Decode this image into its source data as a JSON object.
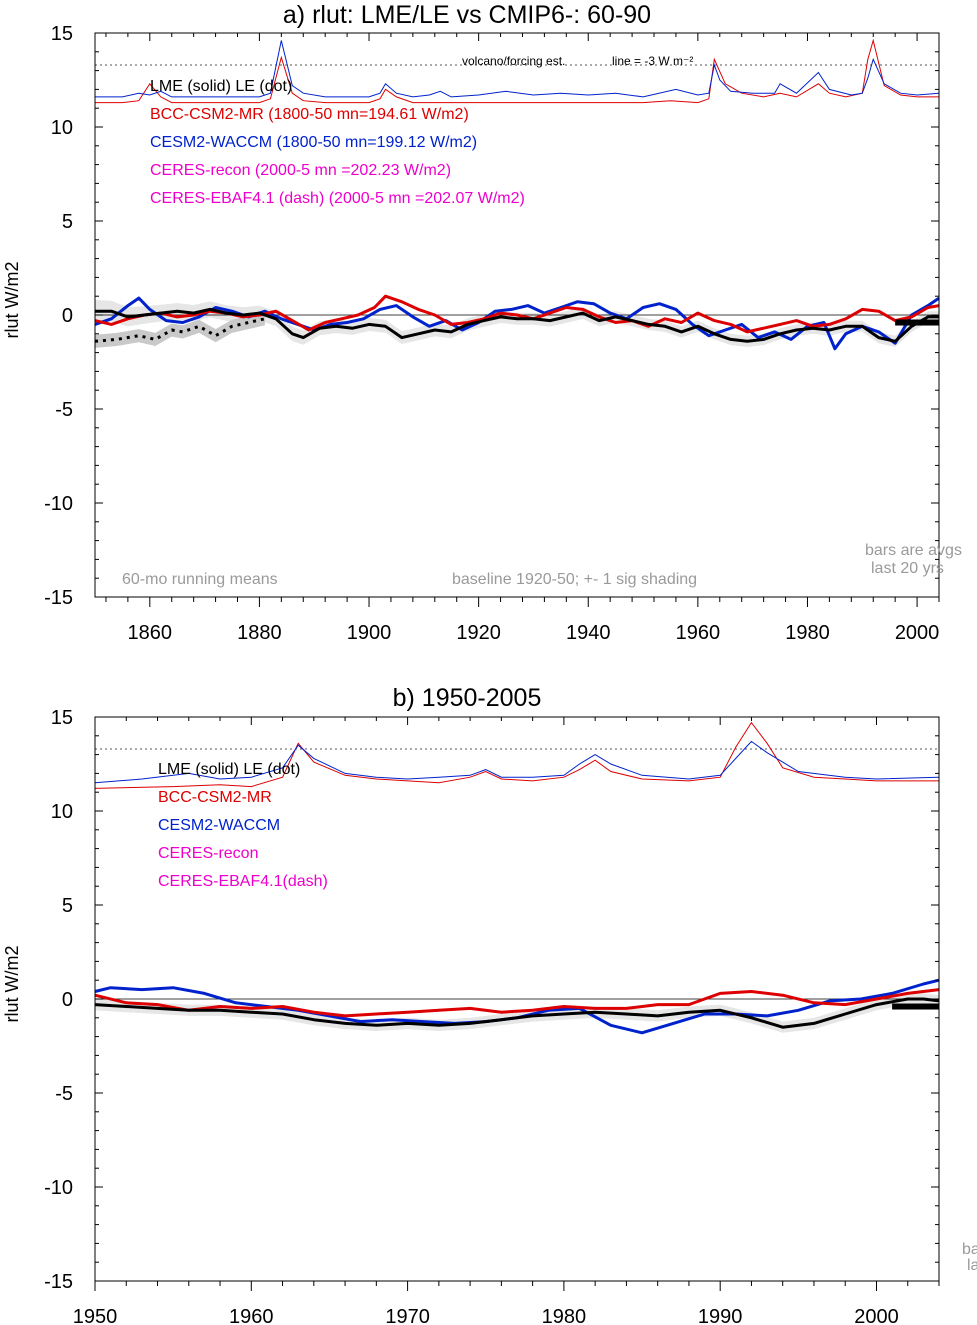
{
  "chart_data": [
    {
      "type": "line",
      "title": "a) rlut: LME/LE vs CMIP6-: 60-90",
      "ylabel": "rlut W/m2",
      "xlim": [
        1850,
        2004
      ],
      "ylim": [
        -15,
        15
      ],
      "x_ticks": [
        1860,
        1880,
        1900,
        1920,
        1940,
        1960,
        1980,
        2000
      ],
      "y_ticks": [
        -15,
        -10,
        -5,
        0,
        5,
        10,
        15
      ],
      "legend": [
        {
          "text": "LME (solid)    LE (dot)",
          "color": "#000000"
        },
        {
          "text": "BCC-CSM2-MR (1800-50 mn=194.61 W/m2)",
          "color": "#dd0000"
        },
        {
          "text": "CESM2-WACCM (1800-50 mn=199.12 W/m2)",
          "color": "#0022cc"
        },
        {
          "text": "CERES-recon (2000-5 mn =202.23 W/m2)",
          "color": "#ee00cc"
        },
        {
          "text": "CERES-EBAF4.1 (dash) (2000-5 mn =202.07 W/m2)",
          "color": "#ee00cc"
        }
      ],
      "annotations": {
        "volcano": "volcano/forcing est.",
        "line": "line = -3 W m⁻²",
        "running": "60-mo running means",
        "baseline": "baseline 1920-50; +- 1 sig shading",
        "bars1": "bars are avgs",
        "bars2": "last 20 yrs"
      },
      "reference_line": 13.3,
      "series": [
        {
          "name": "LME (solid)",
          "color": "#000000",
          "style": "solid",
          "x": [
            1850,
            1853,
            1856,
            1859,
            1862,
            1865,
            1868,
            1871,
            1874,
            1877,
            1880,
            1883,
            1886,
            1888,
            1891,
            1894,
            1897,
            1900,
            1903,
            1906,
            1909,
            1912,
            1915,
            1918,
            1921,
            1924,
            1927,
            1930,
            1933,
            1936,
            1939,
            1942,
            1945,
            1948,
            1951,
            1954,
            1957,
            1960,
            1963,
            1966,
            1969,
            1972,
            1975,
            1978,
            1981,
            1984,
            1987,
            1990,
            1993,
            1996,
            1999,
            2002,
            2004
          ],
          "y": [
            0.2,
            0.2,
            -0.1,
            0.0,
            0.1,
            0.2,
            0.1,
            0.3,
            0.1,
            0.0,
            0.1,
            -0.2,
            -1.0,
            -1.2,
            -0.7,
            -0.6,
            -0.7,
            -0.5,
            -0.6,
            -1.2,
            -1.0,
            -0.8,
            -0.9,
            -0.5,
            -0.3,
            -0.1,
            -0.2,
            -0.2,
            -0.3,
            -0.1,
            0.1,
            -0.3,
            -0.1,
            -0.3,
            -0.5,
            -0.6,
            -0.9,
            -0.6,
            -1.0,
            -1.3,
            -1.4,
            -1.3,
            -1.0,
            -0.8,
            -0.7,
            -0.8,
            -0.6,
            -0.6,
            -1.2,
            -1.4,
            -0.6,
            -0.1,
            -0.1
          ]
        },
        {
          "name": "LE (dot)",
          "color": "#000000",
          "style": "dot",
          "x": [
            1850,
            1854,
            1858,
            1861,
            1864,
            1866,
            1869,
            1872,
            1875,
            1878,
            1881
          ],
          "y": [
            -1.4,
            -1.3,
            -1.1,
            -1.3,
            -0.8,
            -0.9,
            -0.6,
            -1.1,
            -0.6,
            -0.4,
            -0.2
          ]
        },
        {
          "name": "BCC-CSM2-MR",
          "color": "#dd0000",
          "style": "solid",
          "x": [
            1850,
            1853,
            1856,
            1859,
            1862,
            1865,
            1868,
            1871,
            1874,
            1877,
            1880,
            1883,
            1886,
            1889,
            1892,
            1895,
            1898,
            1901,
            1903,
            1906,
            1909,
            1912,
            1915,
            1918,
            1921,
            1924,
            1927,
            1930,
            1933,
            1936,
            1939,
            1942,
            1945,
            1948,
            1951,
            1954,
            1957,
            1960,
            1963,
            1966,
            1969,
            1972,
            1975,
            1978,
            1981,
            1984,
            1987,
            1990,
            1993,
            1996,
            1999,
            2002,
            2004
          ],
          "y": [
            -0.3,
            -0.5,
            -0.2,
            0.0,
            0.1,
            -0.1,
            0.0,
            0.2,
            0.1,
            -0.1,
            0.0,
            0.2,
            -0.3,
            -0.8,
            -0.4,
            -0.2,
            0.0,
            0.4,
            1.0,
            0.7,
            0.3,
            0.0,
            -0.5,
            -0.4,
            -0.2,
            0.1,
            0.0,
            -0.2,
            0.1,
            0.4,
            0.3,
            -0.1,
            -0.4,
            -0.3,
            -0.6,
            -0.2,
            -0.4,
            0.1,
            -0.3,
            -0.5,
            -0.9,
            -0.7,
            -0.5,
            -0.3,
            -0.6,
            -0.5,
            -0.2,
            0.3,
            0.2,
            -0.3,
            -0.1,
            0.4,
            0.5
          ]
        },
        {
          "name": "CESM2-WACCM",
          "color": "#0022cc",
          "style": "solid",
          "x": [
            1850,
            1853,
            1856,
            1858,
            1860,
            1863,
            1866,
            1869,
            1872,
            1875,
            1878,
            1881,
            1884,
            1887,
            1890,
            1893,
            1896,
            1899,
            1902,
            1905,
            1908,
            1911,
            1914,
            1917,
            1920,
            1923,
            1926,
            1929,
            1932,
            1935,
            1938,
            1941,
            1944,
            1947,
            1950,
            1953,
            1956,
            1959,
            1962,
            1965,
            1968,
            1971,
            1974,
            1977,
            1980,
            1983,
            1985,
            1987,
            1990,
            1993,
            1996,
            1999,
            2002,
            2004
          ],
          "y": [
            -0.5,
            -0.2,
            0.5,
            0.9,
            0.3,
            -0.3,
            -0.4,
            -0.1,
            0.4,
            0.2,
            -0.1,
            0.2,
            -0.2,
            -0.5,
            -0.8,
            -0.5,
            -0.4,
            -0.2,
            0.3,
            0.5,
            -0.1,
            -0.6,
            -0.3,
            -0.8,
            -0.4,
            0.2,
            0.3,
            0.5,
            0.1,
            0.4,
            0.7,
            0.6,
            0.1,
            -0.2,
            0.4,
            0.6,
            0.3,
            -0.5,
            -1.1,
            -0.8,
            -0.5,
            -1.2,
            -0.9,
            -1.3,
            -0.6,
            -0.4,
            -1.8,
            -1.0,
            -0.6,
            -0.9,
            -1.5,
            0.0,
            0.5,
            0.9
          ]
        }
      ],
      "bars": [
        {
          "x": [
            1996,
            2004
          ],
          "y": -0.4,
          "color": "#000000"
        }
      ],
      "forcing_series": [
        {
          "name": "BCC-CSM2-MR forcing",
          "color": "#dd0000",
          "x": [
            1850,
            1855,
            1858,
            1860,
            1862,
            1864,
            1868,
            1872,
            1876,
            1880,
            1882,
            1884,
            1886,
            1888,
            1892,
            1896,
            1900,
            1902,
            1903,
            1905,
            1908,
            1911,
            1913,
            1915,
            1920,
            1930,
            1940,
            1950,
            1955,
            1960,
            1962,
            1963,
            1965,
            1968,
            1972,
            1975,
            1978,
            1982,
            1984,
            1987,
            1990,
            1991,
            1992,
            1994,
            1997,
            2000,
            2004
          ],
          "y": [
            11.3,
            11.3,
            11.4,
            12.3,
            11.6,
            11.3,
            11.3,
            11.3,
            11.3,
            11.3,
            11.5,
            13.7,
            11.8,
            11.4,
            11.3,
            11.3,
            11.3,
            11.5,
            12.0,
            11.6,
            11.3,
            11.3,
            11.3,
            11.3,
            11.3,
            11.3,
            11.3,
            11.3,
            11.4,
            11.3,
            11.5,
            13.6,
            12.3,
            11.8,
            11.6,
            11.8,
            11.6,
            12.3,
            11.8,
            11.6,
            11.8,
            13.6,
            14.6,
            12.2,
            11.7,
            11.6,
            11.6
          ]
        },
        {
          "name": "CESM2-WACCM forcing",
          "color": "#0022cc",
          "x": [
            1850,
            1855,
            1858,
            1860,
            1862,
            1864,
            1868,
            1872,
            1876,
            1880,
            1882,
            1884,
            1886,
            1888,
            1892,
            1896,
            1900,
            1902,
            1903,
            1905,
            1908,
            1911,
            1913,
            1915,
            1920,
            1925,
            1930,
            1935,
            1940,
            1945,
            1950,
            1956,
            1960,
            1962,
            1963,
            1964,
            1966,
            1970,
            1974,
            1975,
            1978,
            1982,
            1984,
            1988,
            1990,
            1991,
            1992,
            1994,
            1997,
            2000,
            2004
          ],
          "y": [
            11.6,
            11.6,
            11.8,
            11.7,
            11.9,
            11.6,
            11.6,
            11.6,
            11.6,
            11.6,
            11.8,
            14.6,
            12.2,
            11.8,
            11.6,
            11.6,
            11.6,
            11.8,
            12.3,
            11.8,
            11.6,
            11.7,
            11.9,
            11.6,
            11.7,
            11.9,
            11.7,
            11.8,
            11.7,
            11.8,
            11.6,
            12.0,
            11.7,
            11.8,
            13.3,
            12.5,
            11.9,
            11.8,
            11.8,
            12.3,
            11.8,
            12.9,
            12.0,
            11.7,
            11.8,
            12.6,
            13.6,
            12.3,
            11.8,
            11.7,
            11.8
          ]
        }
      ]
    },
    {
      "type": "line",
      "title": "b) 1950-2005",
      "ylabel": "rlut W/m2",
      "xlim": [
        1950,
        2004
      ],
      "ylim": [
        -15,
        15
      ],
      "x_ticks": [
        1950,
        1960,
        1970,
        1980,
        1990,
        2000
      ],
      "y_ticks": [
        -15,
        -10,
        -5,
        0,
        5,
        10,
        15
      ],
      "legend": [
        {
          "text": "LME (solid)      LE (dot)",
          "color": "#000000"
        },
        {
          "text": "BCC-CSM2-MR",
          "color": "#dd0000"
        },
        {
          "text": "CESM2-WACCM",
          "color": "#0022cc"
        },
        {
          "text": "CERES-recon",
          "color": "#ee00cc"
        },
        {
          "text": "CERES-EBAF4.1(dash)",
          "color": "#ee00cc"
        }
      ],
      "annotations": {
        "bars1": "ba",
        "bars2": "la"
      },
      "reference_line": 13.3,
      "series": [
        {
          "name": "LME (solid)",
          "color": "#000000",
          "style": "solid",
          "x": [
            1950,
            1952,
            1954,
            1956,
            1958,
            1960,
            1962,
            1964,
            1966,
            1968,
            1970,
            1972,
            1974,
            1976,
            1978,
            1980,
            1982,
            1984,
            1986,
            1988,
            1990,
            1992,
            1994,
            1996,
            1998,
            2000,
            2002,
            2003,
            2004
          ],
          "y": [
            -0.3,
            -0.4,
            -0.5,
            -0.6,
            -0.6,
            -0.7,
            -0.8,
            -1.1,
            -1.3,
            -1.4,
            -1.3,
            -1.4,
            -1.3,
            -1.1,
            -0.9,
            -0.8,
            -0.7,
            -0.8,
            -0.9,
            -0.7,
            -0.6,
            -1.0,
            -1.5,
            -1.3,
            -0.8,
            -0.3,
            0.0,
            0.0,
            -0.1
          ]
        },
        {
          "name": "BCC-CSM2-MR",
          "color": "#dd0000",
          "style": "solid",
          "x": [
            1950,
            1952,
            1954,
            1956,
            1958,
            1960,
            1962,
            1964,
            1966,
            1968,
            1970,
            1972,
            1974,
            1976,
            1978,
            1980,
            1982,
            1984,
            1986,
            1988,
            1990,
            1992,
            1994,
            1996,
            1998,
            2000,
            2002,
            2004
          ],
          "y": [
            0.2,
            -0.2,
            -0.3,
            -0.6,
            -0.4,
            -0.5,
            -0.4,
            -0.7,
            -0.9,
            -0.8,
            -0.7,
            -0.6,
            -0.5,
            -0.7,
            -0.6,
            -0.4,
            -0.5,
            -0.5,
            -0.3,
            -0.3,
            0.3,
            0.4,
            0.2,
            -0.2,
            -0.3,
            0.0,
            0.3,
            0.5
          ]
        },
        {
          "name": "CESM2-WACCM",
          "color": "#0022cc",
          "style": "solid",
          "x": [
            1950,
            1951,
            1953,
            1955,
            1957,
            1959,
            1961,
            1963,
            1965,
            1967,
            1969,
            1971,
            1973,
            1975,
            1977,
            1979,
            1981,
            1983,
            1985,
            1987,
            1989,
            1991,
            1993,
            1995,
            1997,
            1999,
            2001,
            2003,
            2004
          ],
          "y": [
            0.4,
            0.6,
            0.5,
            0.6,
            0.3,
            -0.2,
            -0.4,
            -0.6,
            -0.9,
            -1.2,
            -1.1,
            -1.2,
            -1.3,
            -1.2,
            -1.0,
            -0.6,
            -0.5,
            -1.4,
            -1.8,
            -1.3,
            -0.8,
            -0.8,
            -0.9,
            -0.6,
            -0.1,
            0.0,
            0.3,
            0.8,
            1.0
          ]
        }
      ],
      "bars": [
        {
          "x": [
            2001,
            2004
          ],
          "y": -0.4,
          "color": "#000000"
        }
      ],
      "forcing_series": [
        {
          "name": "BCC-CSM2-MR forcing",
          "color": "#dd0000",
          "x": [
            1950,
            1955,
            1958,
            1960,
            1962,
            1963,
            1964,
            1966,
            1968,
            1970,
            1972,
            1974,
            1975,
            1976,
            1978,
            1980,
            1981,
            1982,
            1983,
            1985,
            1988,
            1990,
            1991,
            1992,
            1993,
            1994,
            1996,
            1998,
            2000,
            2004
          ],
          "y": [
            11.2,
            11.3,
            11.4,
            11.3,
            11.8,
            13.6,
            12.6,
            11.9,
            11.7,
            11.6,
            11.5,
            11.8,
            12.1,
            11.7,
            11.6,
            11.8,
            12.2,
            12.7,
            12.1,
            11.7,
            11.6,
            11.8,
            13.4,
            14.7,
            13.6,
            12.3,
            11.8,
            11.7,
            11.6,
            11.6
          ]
        },
        {
          "name": "CESM2-WACCM forcing",
          "color": "#0022cc",
          "x": [
            1950,
            1953,
            1956,
            1958,
            1960,
            1962,
            1963,
            1964,
            1966,
            1968,
            1970,
            1972,
            1974,
            1975,
            1976,
            1978,
            1980,
            1981,
            1982,
            1983,
            1985,
            1988,
            1990,
            1991,
            1992,
            1993,
            1995,
            1998,
            2000,
            2004
          ],
          "y": [
            11.5,
            11.7,
            12.0,
            11.7,
            11.8,
            12.3,
            13.5,
            12.8,
            12.0,
            11.8,
            11.7,
            11.8,
            11.9,
            12.2,
            11.8,
            11.8,
            11.9,
            12.5,
            13.0,
            12.5,
            11.9,
            11.7,
            11.9,
            12.8,
            13.7,
            13.1,
            12.1,
            11.8,
            11.7,
            11.8
          ]
        }
      ]
    }
  ]
}
